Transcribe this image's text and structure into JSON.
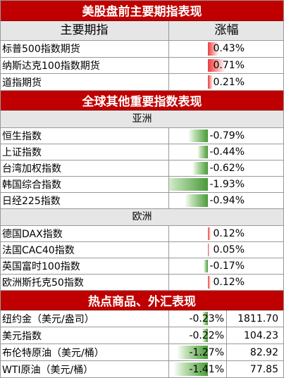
{
  "sections": {
    "us_futures": {
      "title": "美股盘前主要期指表现",
      "col_name": "主要期指",
      "col_change": "涨幅",
      "rows": [
        {
          "name": "标普500指数期货",
          "change": "0.43%",
          "pct": 0.43
        },
        {
          "name": "纳斯达克100指数期货",
          "change": "0.71%",
          "pct": 0.71
        },
        {
          "name": "道指期货",
          "change": "0.21%",
          "pct": 0.21
        }
      ]
    },
    "global": {
      "title": "全球其他重要指数表现",
      "asia": {
        "label": "亚洲",
        "rows": [
          {
            "name": "恒生指数",
            "change": "-0.79%",
            "pct": -0.79
          },
          {
            "name": "上证指数",
            "change": "-0.44%",
            "pct": -0.44
          },
          {
            "name": "台湾加权指数",
            "change": "-0.62%",
            "pct": -0.62
          },
          {
            "name": "韩国综合指数",
            "change": "-1.93%",
            "pct": -1.93
          },
          {
            "name": "日经225指数",
            "change": "-0.94%",
            "pct": -0.94
          }
        ]
      },
      "europe": {
        "label": "欧洲",
        "rows": [
          {
            "name": "德国DAX指数",
            "change": "0.12%",
            "pct": 0.12
          },
          {
            "name": "法国CAC40指数",
            "change": "0.05%",
            "pct": 0.05
          },
          {
            "name": "英国富时100指数",
            "change": "-0.17%",
            "pct": -0.17
          },
          {
            "name": "欧洲斯托克50指数",
            "change": "0.12%",
            "pct": 0.12
          }
        ]
      }
    },
    "commodities": {
      "title": "热点商品、外汇表现",
      "rows": [
        {
          "name": "纽约金（美元/盎司）",
          "change": "-0.23%",
          "pct": -0.23,
          "price": "1811.70"
        },
        {
          "name": "美元指数",
          "change": "-0.22%",
          "pct": -0.22,
          "price": "104.23"
        },
        {
          "name": "布伦特原油（美元/桶）",
          "change": "-1.27%",
          "pct": -1.27,
          "price": "82.92"
        },
        {
          "name": "WTI原油（美元/桶）",
          "change": "-1.41%",
          "pct": -1.41,
          "price": "77.85"
        }
      ]
    }
  },
  "colors": {
    "banner": "#c00000",
    "header_bg": "#e6e6e6",
    "positive": "#ee3b3b",
    "negative": "#4a9a3a"
  }
}
